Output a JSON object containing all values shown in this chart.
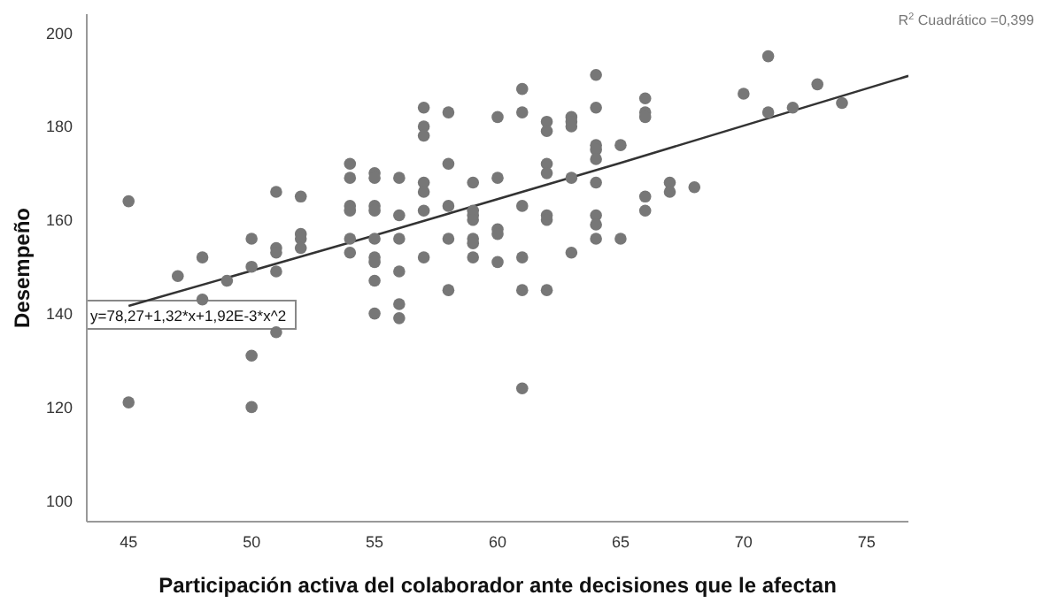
{
  "chart_data": {
    "type": "scatter",
    "xlabel": "Participación activa del colaborador ante decisiones que le afectan",
    "ylabel": "Desempeño",
    "annotations": [
      "y=78,27+1,32*x+1,92E-3*x^2",
      "R$^{2}$ Cuadrático =0,399"
    ],
    "series": [
      {
        "marker": "circle",
        "color": "#777777",
        "x": [
          45,
          45,
          47,
          48,
          48,
          49,
          50,
          50,
          50,
          50,
          51,
          51,
          51,
          51,
          51,
          52,
          52,
          52,
          52,
          54,
          54,
          54,
          54,
          54,
          54,
          55,
          55,
          55,
          55,
          55,
          55,
          55,
          55,
          55,
          56,
          56,
          56,
          56,
          56,
          56,
          57,
          57,
          57,
          57,
          57,
          57,
          57,
          58,
          58,
          58,
          58,
          58,
          59,
          59,
          59,
          59,
          59,
          59,
          59,
          60,
          60,
          60,
          60,
          60,
          61,
          61,
          61,
          61,
          61,
          61,
          62,
          62,
          62,
          62,
          62,
          62,
          62,
          63,
          63,
          63,
          63,
          63,
          64,
          64,
          64,
          64,
          64,
          64,
          64,
          64,
          64,
          65,
          65,
          66,
          66,
          66,
          66,
          66,
          67,
          67,
          68,
          70,
          71,
          71,
          72,
          73,
          74
        ],
        "values": [
          164,
          121,
          148,
          152,
          143,
          147,
          156,
          150,
          131,
          120,
          166,
          154,
          153,
          149,
          136,
          165,
          157,
          156,
          154,
          172,
          169,
          163,
          162,
          156,
          153,
          170,
          169,
          163,
          162,
          156,
          152,
          151,
          147,
          140,
          169,
          161,
          156,
          149,
          142,
          139,
          184,
          180,
          178,
          168,
          166,
          162,
          152,
          183,
          172,
          163,
          156,
          145,
          168,
          162,
          161,
          160,
          156,
          155,
          152,
          182,
          169,
          158,
          157,
          151,
          188,
          183,
          163,
          152,
          145,
          124,
          181,
          179,
          172,
          170,
          161,
          160,
          145,
          182,
          181,
          180,
          169,
          153,
          191,
          184,
          176,
          175,
          173,
          168,
          161,
          159,
          156,
          176,
          156,
          186,
          183,
          182,
          165,
          162,
          168,
          166,
          167,
          187,
          195,
          183,
          184,
          189,
          185
        ]
      },
      {
        "type": "line",
        "color": "#333333",
        "x": [
          45,
          55,
          65,
          76.7
        ],
        "values": [
          141.6,
          156.7,
          172.2,
          190.8
        ]
      }
    ],
    "xlim": [
      43.3,
      76.7
    ],
    "xticks": [
      45,
      50,
      55,
      60,
      65,
      70,
      75
    ],
    "ylim": [
      95.5,
      204
    ],
    "yticks": [
      100,
      120,
      140,
      160,
      180,
      200
    ],
    "grid": false,
    "legend": false,
    "line_style": "solid"
  }
}
